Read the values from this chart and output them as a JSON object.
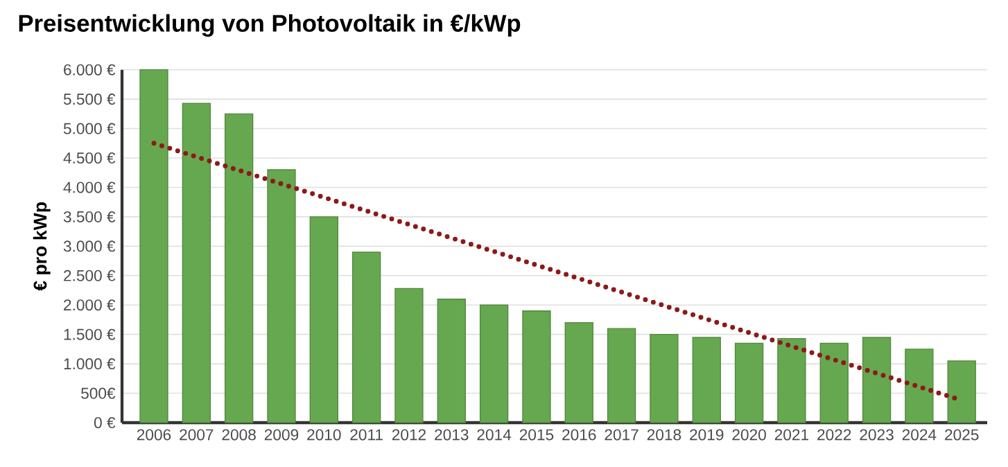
{
  "chart_data": {
    "type": "bar",
    "title": "Preisentwicklung von Photovoltaik in €/kWp",
    "ylabel": "€ pro kWp",
    "categories": [
      "2006",
      "2007",
      "2008",
      "2009",
      "2010",
      "2011",
      "2012",
      "2013",
      "2014",
      "2015",
      "2016",
      "2017",
      "2018",
      "2019",
      "2020",
      "2021",
      "2022",
      "2023",
      "2024",
      "2025"
    ],
    "series": [
      {
        "color": "#66a84f",
        "values": [
          6000,
          5430,
          5250,
          4300,
          3500,
          2900,
          2280,
          2100,
          2000,
          1900,
          1700,
          1600,
          1500,
          1450,
          1350,
          1430,
          1350,
          1450,
          1250,
          1050
        ]
      },
      {
        "type": "line",
        "color": "#8b1a1a",
        "line_style": "dotted",
        "values": [
          4750,
          4520,
          4290,
          4060,
          3830,
          3600,
          3370,
          3140,
          2910,
          2680,
          2450,
          2220,
          1990,
          1760,
          1530,
          1300,
          1070,
          840,
          610,
          380
        ]
      }
    ],
    "ylim": [
      0,
      6000
    ],
    "yticks": [
      {
        "value": 0,
        "label": "0 €"
      },
      {
        "value": 500,
        "label": "500€"
      },
      {
        "value": 1000,
        "label": "1.000 €"
      },
      {
        "value": 1500,
        "label": "1.500 €"
      },
      {
        "value": 2000,
        "label": "2.000 €"
      },
      {
        "value": 2500,
        "label": "2.500 €"
      },
      {
        "value": 3000,
        "label": "3.000 €"
      },
      {
        "value": 3500,
        "label": "3.500 €"
      },
      {
        "value": 4000,
        "label": "4.000 €"
      },
      {
        "value": 4500,
        "label": "4.500 €"
      },
      {
        "value": 5000,
        "label": "5.000 €"
      },
      {
        "value": 5500,
        "label": "5.500 €"
      },
      {
        "value": 6000,
        "label": "6.000 €"
      }
    ],
    "grid": "y"
  }
}
